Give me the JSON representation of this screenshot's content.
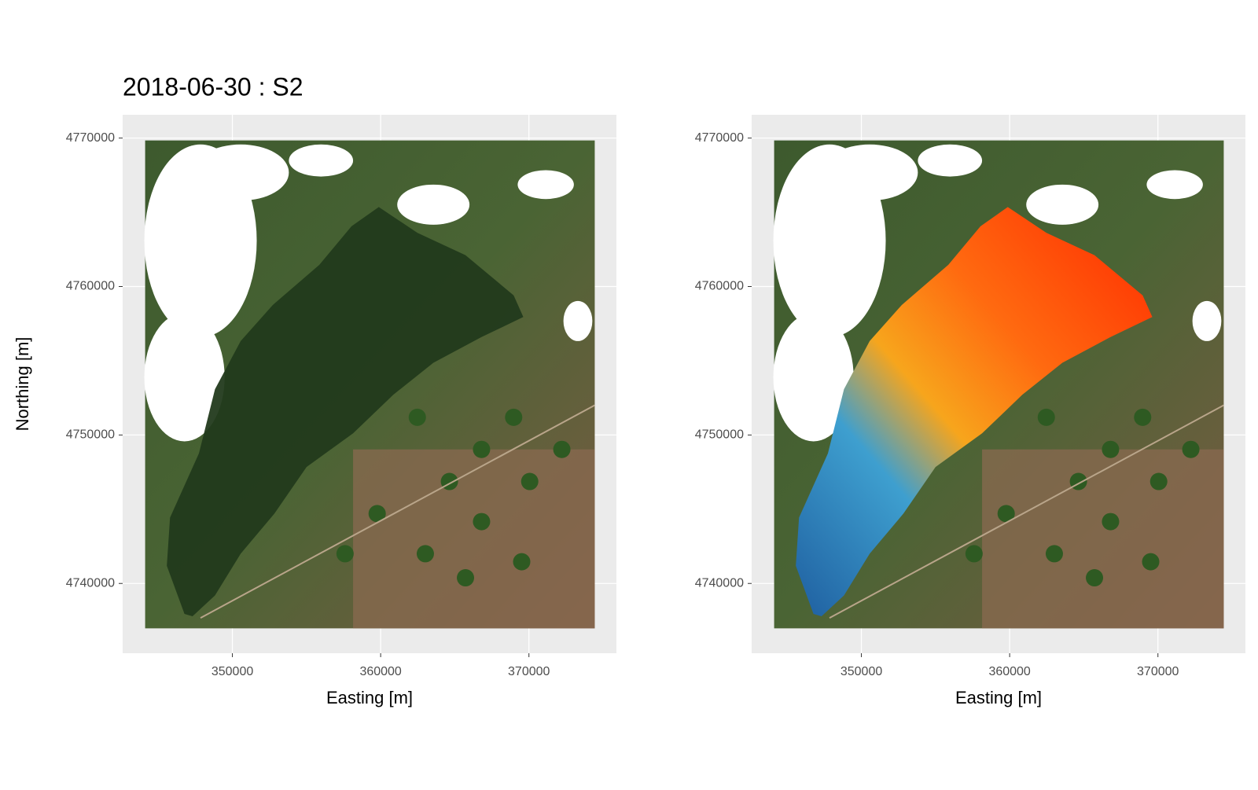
{
  "chart_data": [
    {
      "type": "raster",
      "title": "2018-06-30 : S2",
      "xlabel": "Easting [m]",
      "ylabel": "Northing [m]",
      "xlim": [
        342600,
        375900
      ],
      "ylim": [
        4735300,
        4771570
      ],
      "xticks": [
        350000,
        360000,
        370000
      ],
      "yticks": [
        4740000,
        4750000,
        4760000,
        4770000
      ],
      "grid": true
    },
    {
      "type": "raster",
      "xlabel": "Easting [m]",
      "xlim": [
        342600,
        375900
      ],
      "ylim": [
        4735300,
        4771570
      ],
      "xticks": [
        350000,
        360000,
        370000
      ],
      "yticks": [
        4740000,
        4750000,
        4760000,
        4770000
      ],
      "grid": true
    }
  ]
}
